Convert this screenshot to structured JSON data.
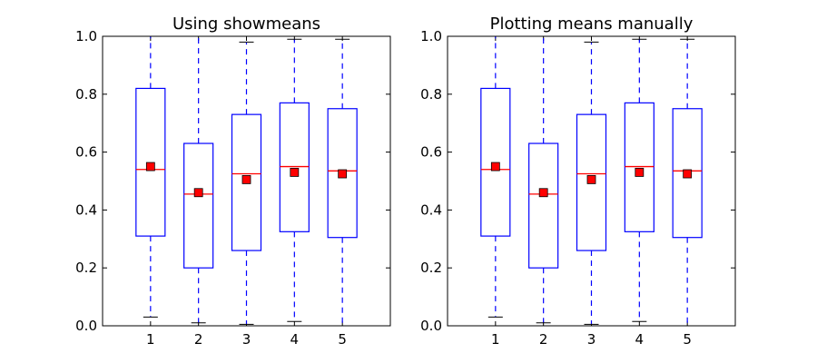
{
  "figure": {
    "panels": [
      {
        "title": "Using showmeans"
      },
      {
        "title": "Plotting means manually"
      }
    ]
  },
  "colors": {
    "box": "#0000ff",
    "median": "#ff0000",
    "mean_fill": "#ff0000",
    "mean_edge": "#000000",
    "axis": "#000000",
    "background": "#ffffff"
  },
  "chart_data": [
    {
      "type": "box",
      "title": "Using showmeans",
      "xlabel": "",
      "ylabel": "",
      "categories": [
        "1",
        "2",
        "3",
        "4",
        "5"
      ],
      "ylim": [
        0.0,
        1.0
      ],
      "yticks": [
        "0.0",
        "0.2",
        "0.4",
        "0.6",
        "0.8",
        "1.0"
      ],
      "grid": false,
      "boxes": [
        {
          "label": "1",
          "whislo": 0.03,
          "q1": 0.31,
          "med": 0.54,
          "q3": 0.82,
          "whishi": 1.0,
          "mean": 0.55
        },
        {
          "label": "2",
          "whislo": 0.01,
          "q1": 0.2,
          "med": 0.455,
          "q3": 0.63,
          "whishi": 1.0,
          "mean": 0.46
        },
        {
          "label": "3",
          "whislo": 0.005,
          "q1": 0.26,
          "med": 0.525,
          "q3": 0.73,
          "whishi": 0.98,
          "mean": 0.505
        },
        {
          "label": "4",
          "whislo": 0.015,
          "q1": 0.325,
          "med": 0.55,
          "q3": 0.77,
          "whishi": 0.99,
          "mean": 0.53
        },
        {
          "label": "5",
          "whislo": 0.0,
          "q1": 0.305,
          "med": 0.535,
          "q3": 0.75,
          "whishi": 0.99,
          "mean": 0.525
        }
      ]
    },
    {
      "type": "box",
      "title": "Plotting means manually",
      "xlabel": "",
      "ylabel": "",
      "categories": [
        "1",
        "2",
        "3",
        "4",
        "5"
      ],
      "ylim": [
        0.0,
        1.0
      ],
      "yticks": [
        "0.0",
        "0.2",
        "0.4",
        "0.6",
        "0.8",
        "1.0"
      ],
      "grid": false,
      "boxes": [
        {
          "label": "1",
          "whislo": 0.03,
          "q1": 0.31,
          "med": 0.54,
          "q3": 0.82,
          "whishi": 1.0,
          "mean": 0.55
        },
        {
          "label": "2",
          "whislo": 0.01,
          "q1": 0.2,
          "med": 0.455,
          "q3": 0.63,
          "whishi": 1.0,
          "mean": 0.46
        },
        {
          "label": "3",
          "whislo": 0.005,
          "q1": 0.26,
          "med": 0.525,
          "q3": 0.73,
          "whishi": 0.98,
          "mean": 0.505
        },
        {
          "label": "4",
          "whislo": 0.015,
          "q1": 0.325,
          "med": 0.55,
          "q3": 0.77,
          "whishi": 0.99,
          "mean": 0.53
        },
        {
          "label": "5",
          "whislo": 0.0,
          "q1": 0.305,
          "med": 0.535,
          "q3": 0.75,
          "whishi": 0.99,
          "mean": 0.525
        }
      ]
    }
  ]
}
